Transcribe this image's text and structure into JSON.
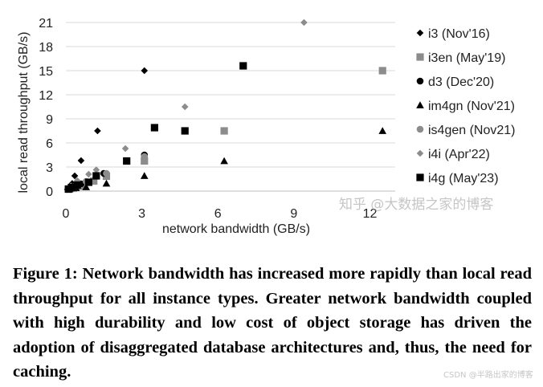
{
  "chart_data": {
    "type": "scatter",
    "title": "",
    "xlabel": "network bandwidth (GB/s)",
    "ylabel": "local read throughput (GB/s)",
    "xlim": [
      0,
      13
    ],
    "ylim": [
      0,
      21
    ],
    "xticks": [
      0,
      3,
      6,
      9,
      12
    ],
    "yticks": [
      0,
      3,
      6,
      9,
      12,
      15,
      18,
      21
    ],
    "grid": "horizontal",
    "legend_position": "right",
    "series": [
      {
        "name": "i3 (Nov'16)",
        "marker": "diamond",
        "color": "#000000",
        "points": [
          [
            0.06,
            0.2
          ],
          [
            0.12,
            0.4
          ],
          [
            0.25,
            0.95
          ],
          [
            0.35,
            1.9
          ],
          [
            0.6,
            3.8
          ],
          [
            1.25,
            7.5
          ],
          [
            3.1,
            15.0
          ]
        ]
      },
      {
        "name": "i3en (May'19)",
        "marker": "square",
        "color": "#8c8c8c",
        "points": [
          [
            0.12,
            0.25
          ],
          [
            0.3,
            0.35
          ],
          [
            0.6,
            0.6
          ],
          [
            1.1,
            1.25
          ],
          [
            1.6,
            1.85
          ],
          [
            3.1,
            3.75
          ],
          [
            6.25,
            7.5
          ],
          [
            12.5,
            15.0
          ]
        ]
      },
      {
        "name": "d3 (Dec'20)",
        "marker": "circle",
        "color": "#000000",
        "points": [
          [
            0.1,
            0.3
          ],
          [
            0.3,
            0.6
          ],
          [
            0.6,
            0.9
          ],
          [
            1.5,
            2.2
          ],
          [
            3.1,
            4.5
          ]
        ]
      },
      {
        "name": "im4gn (Nov'21)",
        "marker": "triangle",
        "color": "#000000",
        "points": [
          [
            0.15,
            0.25
          ],
          [
            0.4,
            0.4
          ],
          [
            0.8,
            0.5
          ],
          [
            1.6,
            0.95
          ],
          [
            3.1,
            1.9
          ],
          [
            6.25,
            3.75
          ],
          [
            12.5,
            7.5
          ]
        ]
      },
      {
        "name": "is4gen (Nov21)",
        "marker": "circle",
        "color": "#8c8c8c",
        "points": [
          [
            0.15,
            0.35
          ],
          [
            0.4,
            0.7
          ],
          [
            0.8,
            1.2
          ],
          [
            1.6,
            2.2
          ],
          [
            3.1,
            4.3
          ]
        ]
      },
      {
        "name": "i4i (Apr'22)",
        "marker": "diamond",
        "color": "#8c8c8c",
        "points": [
          [
            0.2,
            0.65
          ],
          [
            0.45,
            1.3
          ],
          [
            0.9,
            2.1
          ],
          [
            1.2,
            2.65
          ],
          [
            2.35,
            5.3
          ],
          [
            4.7,
            10.5
          ],
          [
            9.4,
            21.0
          ]
        ]
      },
      {
        "name": "i4g (May'23)",
        "marker": "square",
        "color": "#000000",
        "points": [
          [
            0.1,
            0.25
          ],
          [
            0.22,
            0.45
          ],
          [
            0.45,
            0.75
          ],
          [
            0.9,
            1.1
          ],
          [
            1.2,
            1.9
          ],
          [
            2.4,
            3.75
          ],
          [
            3.5,
            7.9
          ],
          [
            4.7,
            7.5
          ],
          [
            7.0,
            15.6
          ]
        ]
      }
    ]
  },
  "caption": "Figure 1: Network bandwidth has increased more rapidly than local read throughput for all instance types. Greater network bandwidth coupled with high durability and low cost of object storage has driven the adoption of disaggregated database architectures and, thus, the need for caching.",
  "watermark": {
    "main": "知乎 @大数据之家的博客",
    "sub": "CSDN @半路出家的博客"
  }
}
